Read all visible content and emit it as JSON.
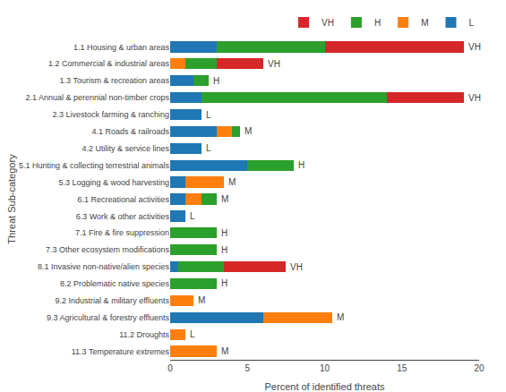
{
  "chart_data": {
    "type": "bar",
    "orientation": "horizontal",
    "stacked": true,
    "categories": [
      "1.1 Housing & urban areas",
      "1.2 Commercial & industrial areas",
      "1.3 Tourism & recreation areas",
      "2.1 Annual & perennial non-timber crops",
      "2.3 Livestock farming & ranching",
      "4.1 Roads & railroads",
      "4.2 Utility & service lines",
      "5.1 Hunting & collecting terrestrial animals",
      "5.3 Logging & wood harvesting",
      "6.1 Recreational activities",
      "6.3 Work & other activities",
      "7.1 Fire & fire suppression",
      "7.3 Other ecosystem modifications",
      "8.1 Invasive non-native/alien species",
      "8.2 Problematic native species",
      "9.2 Industrial & military effluents",
      "9.3 Agricultural & forestry effluents",
      "11.2 Droughts",
      "11.3 Temperature extremes"
    ],
    "series": [
      {
        "name": "L",
        "values": [
          3.0,
          0.0,
          1.5,
          2.0,
          2.0,
          3.0,
          2.0,
          5.0,
          1.0,
          1.0,
          1.0,
          0.0,
          0.0,
          0.5,
          0.0,
          0.0,
          6.0,
          0.0,
          0.0
        ]
      },
      {
        "name": "M",
        "values": [
          0.0,
          1.0,
          0.0,
          0.0,
          0.0,
          1.0,
          0.0,
          0.0,
          2.5,
          1.0,
          0.0,
          0.0,
          0.0,
          0.0,
          0.0,
          1.5,
          4.5,
          1.0,
          3.0
        ]
      },
      {
        "name": "H",
        "values": [
          7.0,
          2.0,
          1.0,
          12.0,
          0.0,
          0.5,
          0.0,
          3.0,
          0.0,
          1.0,
          0.0,
          3.0,
          3.0,
          3.0,
          3.0,
          0.0,
          0.0,
          0.0,
          0.0
        ]
      },
      {
        "name": "VH",
        "values": [
          9.0,
          3.0,
          0.0,
          5.0,
          0.0,
          0.0,
          0.0,
          0.0,
          0.0,
          0.0,
          0.0,
          0.0,
          0.0,
          4.0,
          0.0,
          0.0,
          0.0,
          0.0,
          0.0
        ]
      }
    ],
    "annotations": [
      "VH",
      "VH",
      "H",
      "VH",
      "L",
      "M",
      "L",
      "H",
      "M",
      "M",
      "L",
      "H",
      "H",
      "VH",
      "H",
      "M",
      "M",
      "L",
      "M"
    ],
    "xlabel": "Percent of identified threats",
    "ylabel": "Threat Sub-category",
    "xlim": [
      0,
      20
    ],
    "xticks": [
      0,
      5,
      10,
      15,
      20
    ],
    "grid": false,
    "legend": "upper right"
  }
}
